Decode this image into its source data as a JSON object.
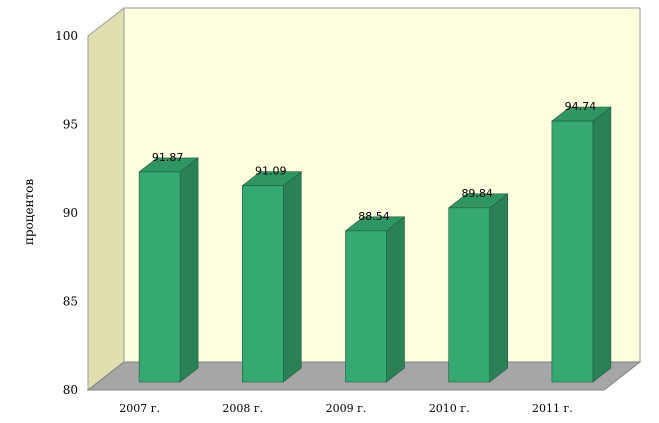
{
  "chart_data": {
    "type": "bar",
    "categories": [
      "2007 г.",
      "2008 г.",
      "2009 г.",
      "2010 г.",
      "2011 г."
    ],
    "values": [
      91.87,
      91.09,
      88.54,
      89.84,
      94.74
    ],
    "value_labels": [
      "91.87",
      "91.09",
      "88.54",
      "89.84",
      "94.74"
    ],
    "title": "",
    "xlabel": "",
    "ylabel": "процентов",
    "ylim": [
      80,
      100
    ],
    "yticks": [
      "80",
      "85",
      "90",
      "95",
      "100"
    ],
    "style": "3d",
    "colors": {
      "bar_front": "#36a872",
      "bar_side": "#2b8156",
      "bar_top": "#2f9562",
      "back_wall": "#ffffe0",
      "side_wall": "#e0dfb0",
      "floor": "#a6a6a6"
    }
  }
}
